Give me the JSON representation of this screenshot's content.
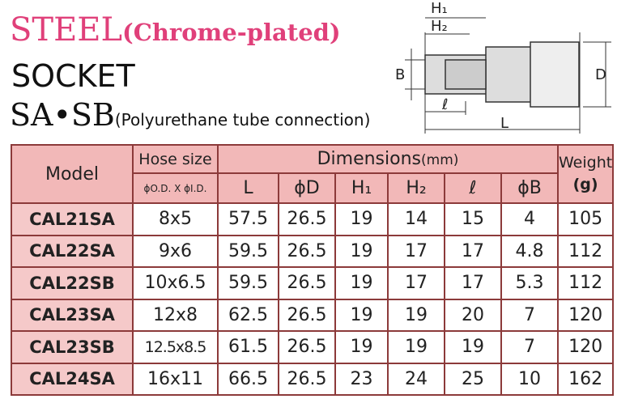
{
  "header": {
    "title": "STEEL",
    "title_note": "(Chrome-plated)",
    "subtitle": "SOCKET",
    "series": "SA•SB",
    "series_note": "(Polyurethane tube connection)"
  },
  "diagram": {
    "labels": {
      "h1": "H₁",
      "h2": "H₂",
      "b": "B",
      "d": "D",
      "l_small": "ℓ",
      "l": "L"
    }
  },
  "table": {
    "headers": {
      "model": "Model",
      "hose": "Hose size",
      "hose_unit": "ϕO.D. X ϕI.D.",
      "dimensions": "Dimensions",
      "dimensions_unit": "(mm)",
      "weight": "Weight",
      "weight_unit": "(g)",
      "columns": [
        "L",
        "ϕD",
        "H₁",
        "H₂",
        "ℓ",
        "ϕB"
      ]
    },
    "rows": [
      [
        "CAL21SA",
        "8x5",
        "57.5",
        "26.5",
        "19",
        "14",
        "15",
        "4",
        "105"
      ],
      [
        "CAL22SA",
        "9x6",
        "59.5",
        "26.5",
        "19",
        "17",
        "17",
        "4.8",
        "112"
      ],
      [
        "CAL22SB",
        "10x6.5",
        "59.5",
        "26.5",
        "19",
        "17",
        "17",
        "5.3",
        "112"
      ],
      [
        "CAL23SA",
        "12x8",
        "62.5",
        "26.5",
        "19",
        "19",
        "20",
        "7",
        "120"
      ],
      [
        "CAL23SB",
        "12.5x8.5",
        "61.5",
        "26.5",
        "19",
        "19",
        "19",
        "7",
        "120"
      ],
      [
        "CAL24SA",
        "16x11",
        "66.5",
        "26.5",
        "23",
        "24",
        "25",
        "10",
        "162"
      ]
    ]
  }
}
